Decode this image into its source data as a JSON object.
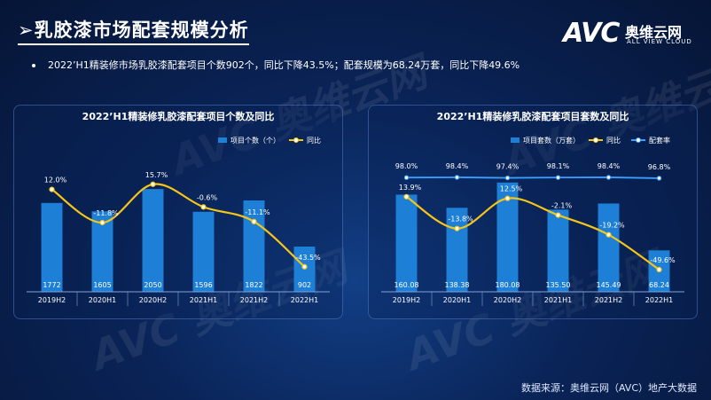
{
  "page": {
    "title": "乳胶漆市场配套规模分析",
    "brand": {
      "logo": "AVC",
      "name_cn": "奥维云网",
      "name_en": "ALL VIEW CLOUD"
    },
    "summary": "2022’H1精装修市场乳胶漆配套项目个数902个，同比下降43.5%；配套规模为68.24万套，同比下降49.6%",
    "source": "数据来源：奥维云网（AVC）地产大数据",
    "watermark": "AVC 奥维云网"
  },
  "colors": {
    "bar": "#1e7fd6",
    "yoy_line": "#f5c518",
    "rate_line": "#3aa0ff",
    "panel_border": "#5a8cdc"
  },
  "chart_data": [
    {
      "type": "bar",
      "title": "2022’H1精装修乳胶漆配套项目个数及同比",
      "categories": [
        "2019H2",
        "2020H1",
        "2020H2",
        "2021H1",
        "2021H2",
        "2022H1"
      ],
      "series": [
        {
          "name": "项目个数（个）",
          "type": "bar",
          "values": [
            1772,
            1605,
            2050,
            1596,
            1822,
            902
          ],
          "labels": [
            "1772",
            "1605",
            "2050",
            "1596",
            "1822",
            "902"
          ]
        },
        {
          "name": "同比",
          "type": "line",
          "values": [
            12.0,
            -11.8,
            15.7,
            -0.6,
            -11.1,
            -43.5
          ],
          "labels": [
            "12.0%",
            "-11.8%",
            "15.7%",
            "-0.6%",
            "-11.1%",
            "-43.5%"
          ]
        }
      ],
      "bar_range": [
        0,
        2300
      ],
      "line_range": [
        -50,
        20
      ],
      "legend_position": "top-right"
    },
    {
      "type": "bar",
      "title": "2022’H1精装修乳胶漆配套项目套数及同比",
      "categories": [
        "2019H2",
        "2020H1",
        "2020H2",
        "2021H1",
        "2021H2",
        "2022H1"
      ],
      "series": [
        {
          "name": "项目套数（万套）",
          "type": "bar",
          "values": [
            160.08,
            138.38,
            180.08,
            135.5,
            145.49,
            68.24
          ],
          "labels": [
            "160.08",
            "138.38",
            "180.08",
            "135.50",
            "145.49",
            "68.24"
          ]
        },
        {
          "name": "同比",
          "type": "line",
          "values": [
            13.9,
            -13.8,
            12.5,
            -2.1,
            -19.2,
            -49.6
          ],
          "labels": [
            "13.9%",
            "-13.8%",
            "12.5%",
            "-2.1%",
            "-19.2%",
            "-49.6%"
          ]
        },
        {
          "name": "配套率",
          "type": "line",
          "values": [
            98.0,
            98.4,
            97.4,
            98.1,
            98.4,
            96.8
          ],
          "labels": [
            "98.0%",
            "98.4%",
            "97.4%",
            "98.1%",
            "98.4%",
            "96.8%"
          ]
        }
      ],
      "bar_range": [
        0,
        190
      ],
      "line_range": [
        -55,
        30
      ],
      "rate_range": [
        0,
        100
      ],
      "legend_position": "top-right"
    }
  ]
}
